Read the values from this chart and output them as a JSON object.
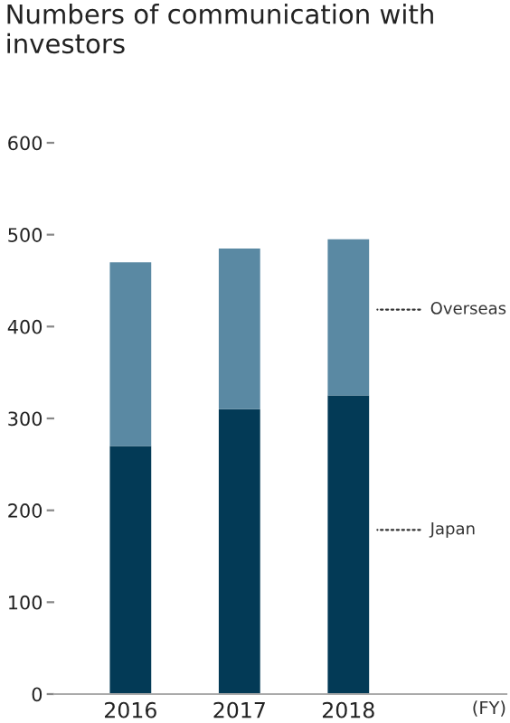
{
  "chart_data": {
    "type": "bar",
    "title": "Numbers of communication with investors",
    "xlabel": "(FY)",
    "categories": [
      "2016",
      "2017",
      "2018"
    ],
    "stacked": true,
    "series": [
      {
        "name": "Japan",
        "color": "#033a56",
        "values": [
          270,
          310,
          325
        ]
      },
      {
        "name": "Overseas",
        "color": "#5a89a3",
        "values": [
          200,
          175,
          170
        ]
      }
    ],
    "ylim": [
      0,
      600
    ],
    "yticks": [
      0,
      100,
      200,
      300,
      400,
      500,
      600
    ],
    "grid": false,
    "legend": false
  }
}
